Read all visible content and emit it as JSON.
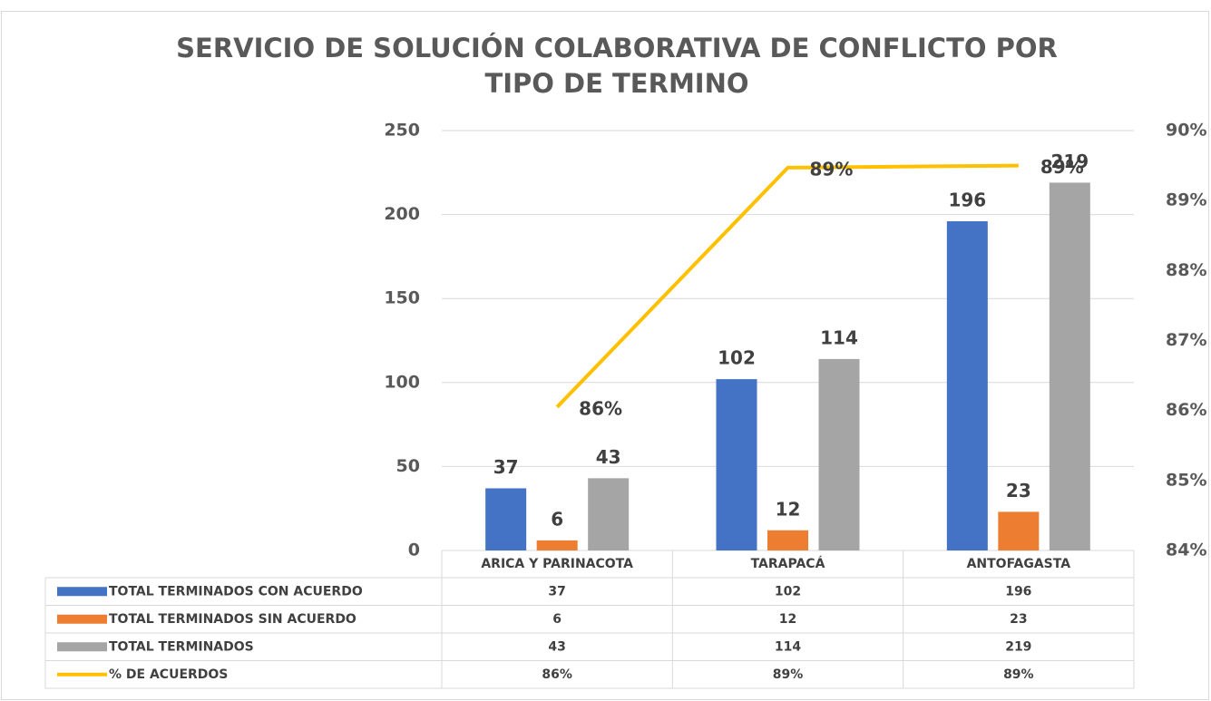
{
  "chart_data": {
    "type": "bar",
    "title": [
      "SERVICIO DE SOLUCIÓN COLABORATIVA DE CONFLICTO POR",
      "TIPO DE TERMINO"
    ],
    "categories": [
      "ARICA Y PARINACOTA",
      "TARAPACÁ",
      "ANTOFAGASTA"
    ],
    "series": [
      {
        "name": "TOTAL TERMINADOS CON ACUERDO",
        "color": "#4472c4",
        "type": "bar",
        "values": [
          37,
          102,
          196
        ]
      },
      {
        "name": "TOTAL TERMINADOS SIN ACUERDO",
        "color": "#ed7d31",
        "type": "bar",
        "values": [
          6,
          12,
          23
        ]
      },
      {
        "name": "TOTAL TERMINADOS",
        "color": "#a5a5a5",
        "type": "bar",
        "values": [
          43,
          114,
          219
        ]
      },
      {
        "name": "% DE ACUERDOS",
        "color": "#ffc000",
        "type": "line",
        "axis": "y2",
        "values": [
          86.05,
          89.47,
          89.5
        ],
        "value_labels": [
          "86%",
          "89%",
          "89%"
        ]
      }
    ],
    "ylim": [
      0,
      250
    ],
    "yticks": [
      0,
      50,
      100,
      150,
      200,
      250
    ],
    "y2lim": [
      84,
      90
    ],
    "y2ticks": [
      {
        "value": 84,
        "label": "84%"
      },
      {
        "value": 85,
        "label": "85%"
      },
      {
        "value": 86,
        "label": "86%"
      },
      {
        "value": 87,
        "label": "87%"
      },
      {
        "value": 88,
        "label": "88%"
      },
      {
        "value": 89,
        "label": "89%"
      },
      {
        "value": 90,
        "label": "90%"
      }
    ],
    "grid": true
  }
}
